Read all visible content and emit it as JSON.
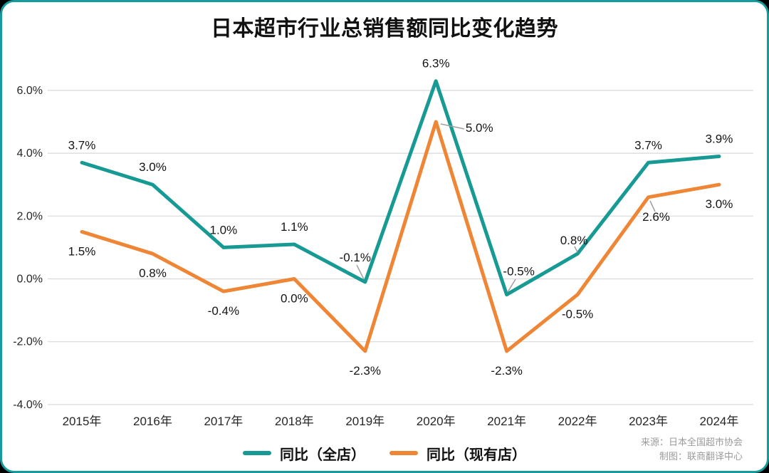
{
  "title": "日本超市行业总销售额同比变化趋势",
  "chart_data": {
    "type": "line",
    "title": "日本超市行业总销售额同比变化趋势",
    "x": [
      "2015年",
      "2016年",
      "2017年",
      "2018年",
      "2019年",
      "2020年",
      "2021年",
      "2022年",
      "2023年",
      "2024年"
    ],
    "series": [
      {
        "name": "同比（全店）",
        "color": "#189a94",
        "values": [
          3.7,
          3.0,
          1.0,
          1.1,
          -0.1,
          6.3,
          -0.5,
          0.8,
          3.7,
          3.9
        ],
        "labels": [
          "3.7%",
          "3.0%",
          "1.0%",
          "1.1%",
          "-0.1%",
          "6.3%",
          "-0.5%",
          "0.8%",
          "3.7%",
          "3.9%"
        ]
      },
      {
        "name": "同比（现有店）",
        "color": "#ef8636",
        "values": [
          1.5,
          0.8,
          -0.4,
          0.0,
          -2.3,
          5.0,
          -2.3,
          -0.5,
          2.6,
          3.0
        ],
        "labels": [
          "1.5%",
          "0.8%",
          "-0.4%",
          "0.0%",
          "-2.3%",
          "5.0%",
          "-2.3%",
          "-0.5%",
          "2.6%",
          "3.0%"
        ]
      }
    ],
    "y_ticks": [
      "6.0%",
      "4.0%",
      "2.0%",
      "0.0%",
      "-2.0%",
      "-4.0%"
    ],
    "y_tick_values": [
      6,
      4,
      2,
      0,
      -2,
      -4
    ],
    "ylim": [
      -4,
      6
    ],
    "unit": "%",
    "grid": true,
    "legend_position": "bottom"
  },
  "source": {
    "line1": "来源：日本全国超市协会",
    "line2": "制图：联商翻译中心"
  },
  "frame": {
    "border_color": "#149c9c",
    "grid_color": "#d9d9d9",
    "leader_color": "#9e9e9e"
  }
}
